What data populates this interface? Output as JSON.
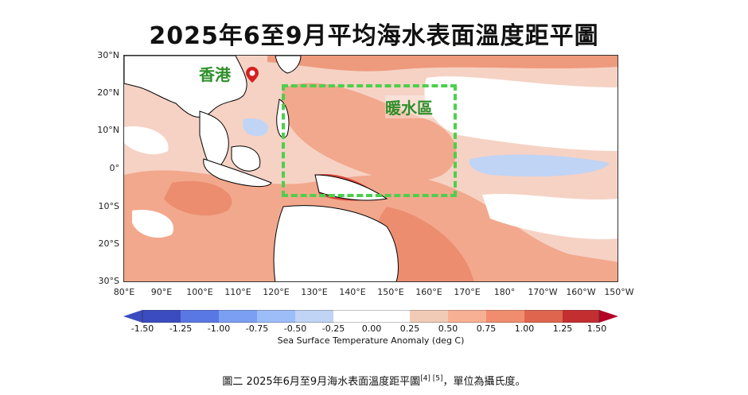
{
  "title": "2025年6至9月平均海水表面溫度距平圖",
  "map": {
    "lat_labels": [
      "30°N",
      "20°N",
      "10°N",
      "0°",
      "10°S",
      "20°S",
      "30°S"
    ],
    "lon_labels": [
      "80°E",
      "90°E",
      "100°E",
      "110°E",
      "120°E",
      "130°E",
      "140°E",
      "150°E",
      "160°E",
      "170°E",
      "180°",
      "170°W",
      "160°W",
      "150°W"
    ],
    "hong_kong_label": "香港",
    "warm_region_label": "暖水區",
    "colors": {
      "anomaly_box": "#4ccf4c",
      "label_text": "#2f8f2a",
      "pin": "#d62020"
    }
  },
  "colorbar": {
    "ticks": [
      "-1.50",
      "-1.25",
      "-1.00",
      "-0.75",
      "-0.50",
      "-0.25",
      "0.00",
      "0.25",
      "0.50",
      "0.75",
      "1.00",
      "1.25",
      "1.50"
    ],
    "colors": [
      "#3b4cc0",
      "#5a78e4",
      "#7b9ff2",
      "#9dbdf9",
      "#c0d4f5",
      "#ffffff",
      "#ffffff",
      "#f2cbb7",
      "#f7b093",
      "#f18d6f",
      "#e0654f",
      "#c32e31"
    ],
    "label": "Sea Surface Temperature Anomaly (deg C)"
  },
  "caption": {
    "text": "圖二 2025年6月至9月海水表面溫度距平圖",
    "refs": "[4] [5]",
    "suffix": "，單位為攝氏度。"
  }
}
